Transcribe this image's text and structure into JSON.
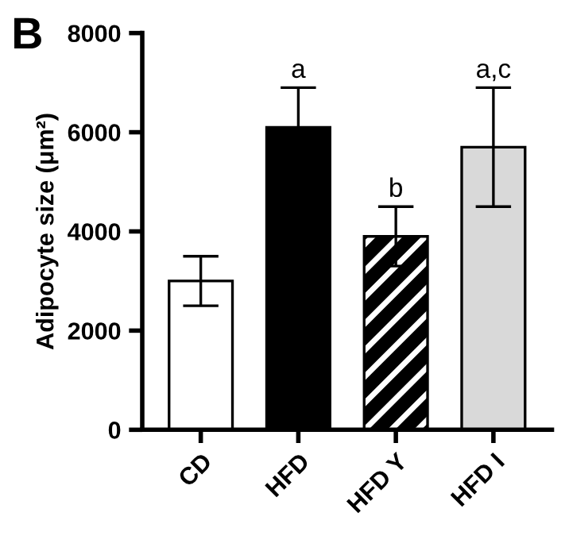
{
  "chart_data": {
    "type": "bar",
    "ylabel": "Adipocyte size (μm²)",
    "categories": [
      "CD",
      "HFD",
      "HFD Y",
      "HFD I"
    ],
    "values": [
      3000,
      6100,
      3900,
      5700
    ],
    "errors": [
      500,
      800,
      600,
      1200
    ],
    "colors": [
      "#ffffff",
      "#000000",
      "#000000",
      "#d9d9d9"
    ],
    "ylim": [
      0,
      8000
    ],
    "yticks": [
      0,
      2000,
      4000,
      6000,
      8000
    ],
    "grid": false,
    "annotations": [
      "B",
      {
        "text": "a",
        "x": "HFD",
        "y": 6900
      },
      {
        "text": "b",
        "x": "HFD Y",
        "y": 4500
      },
      {
        "text": "a,c",
        "x": "HFD I",
        "y": 6900
      }
    ]
  }
}
